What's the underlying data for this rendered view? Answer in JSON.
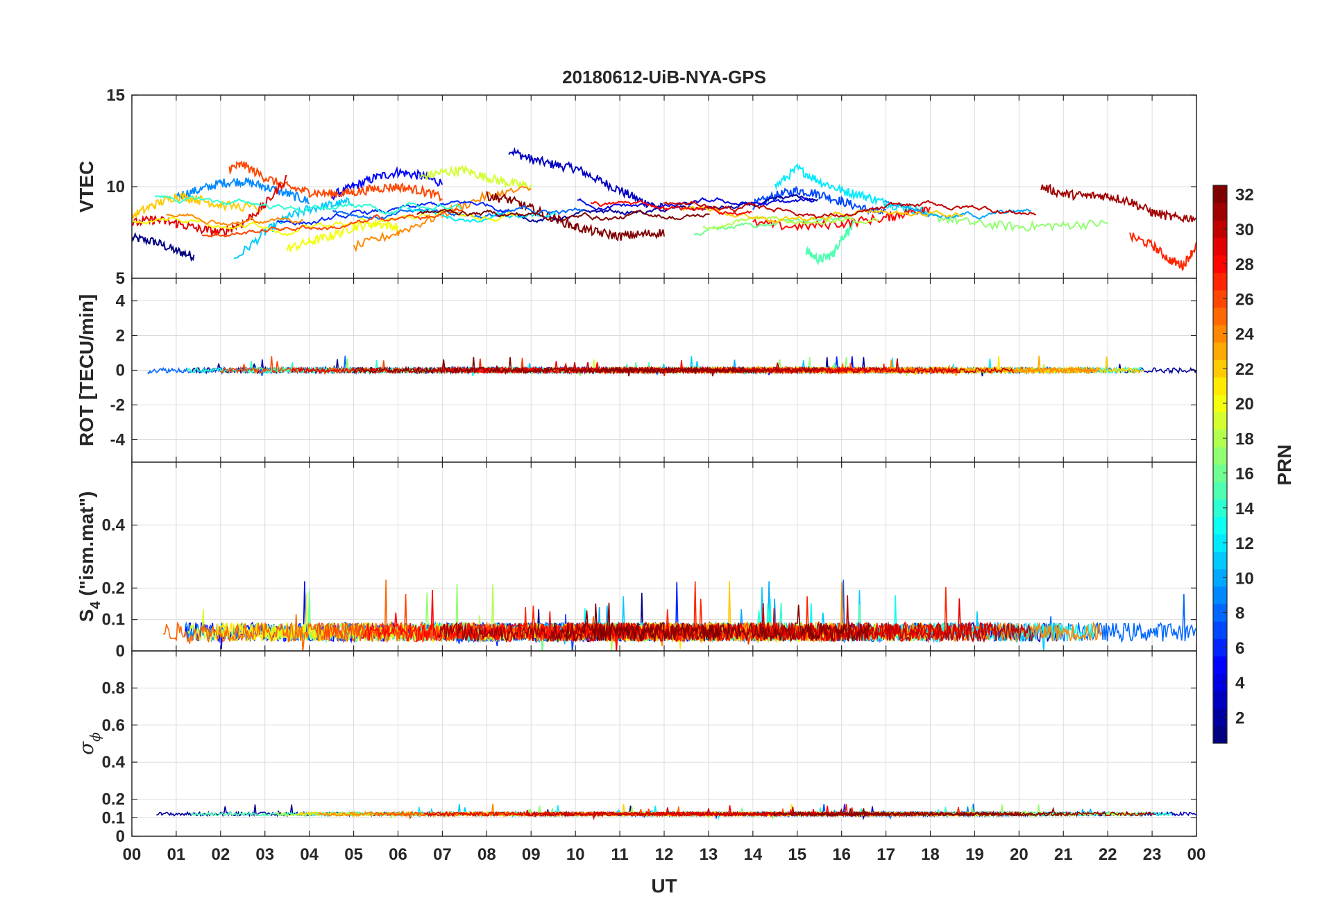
{
  "chart_data": {
    "type": "line",
    "title": "20180612-UiB-NYA-GPS",
    "xlabel": "UT",
    "x_ticks": [
      "00",
      "01",
      "02",
      "03",
      "04",
      "05",
      "06",
      "07",
      "08",
      "09",
      "10",
      "11",
      "12",
      "13",
      "14",
      "15",
      "16",
      "17",
      "18",
      "19",
      "20",
      "21",
      "22",
      "23",
      "00"
    ],
    "xlim": [
      0,
      24
    ],
    "grid": true,
    "colorbar": {
      "label": "PRN",
      "range": [
        1,
        32
      ],
      "ticks": [
        "2",
        "4",
        "6",
        "8",
        "10",
        "12",
        "14",
        "16",
        "18",
        "20",
        "22",
        "24",
        "26",
        "28",
        "30",
        "32"
      ],
      "colormap": "jet",
      "colors": [
        "#00008f",
        "#0000ff",
        "#00ffff",
        "#ffff00",
        "#ff0000",
        "#800000"
      ]
    },
    "panels": [
      {
        "ylabel": "VTEC",
        "ylim": [
          5,
          15
        ],
        "y_ticks": [
          "5",
          "10",
          "15"
        ],
        "y_tick_values": [
          5,
          10,
          15
        ],
        "baseline": 8.5,
        "spread": 1.2
      },
      {
        "ylabel": "ROT [TECU/min]",
        "ylim": [
          -5.3,
          5.3
        ],
        "y_ticks": [
          "-4",
          "-2",
          "0",
          "2",
          "4"
        ],
        "y_tick_values": [
          -4,
          -2,
          0,
          2,
          4
        ],
        "baseline": 0.0,
        "spread": 0.15
      },
      {
        "ylabel": "S",
        "ylabel_sub": "4",
        "ylabel_suffix": " (\"ism.mat\")",
        "ylim": [
          0,
          0.6
        ],
        "y_ticks": [
          "0",
          "0.1",
          "0.2",
          "0.4"
        ],
        "y_tick_values": [
          0,
          0.1,
          0.2,
          0.4
        ],
        "baseline": 0.06,
        "spread": 0.03
      },
      {
        "ylabel": "σ",
        "ylabel_sub": "ϕ",
        "ylim": [
          0,
          1
        ],
        "y_ticks": [
          "0",
          "0.1",
          "0.2",
          "0.4",
          "0.6",
          "0.8"
        ],
        "y_tick_values": [
          0,
          0.1,
          0.2,
          0.4,
          0.6,
          0.8
        ],
        "baseline": 0.12,
        "spread": 0.01
      }
    ],
    "series": [
      {
        "name": "1",
        "panel": 0,
        "x": [
          0.0,
          0.5,
          1.0,
          1.4
        ],
        "y": [
          7.2,
          7.0,
          6.5,
          6.2
        ]
      },
      {
        "name": "3",
        "panel": 0,
        "x": [
          8.5,
          9.0,
          9.5,
          10.0,
          10.5,
          11.0,
          11.5,
          12.0
        ],
        "y": [
          12.0,
          11.5,
          11.2,
          11.0,
          10.4,
          9.8,
          9.2,
          8.8
        ]
      },
      {
        "name": "5",
        "panel": 0,
        "x": [
          4.5,
          5.0,
          5.5,
          6.0,
          6.5,
          7.0
        ],
        "y": [
          9.5,
          10.0,
          10.5,
          10.8,
          10.6,
          10.2
        ]
      },
      {
        "name": "7",
        "panel": 0,
        "x": [
          14.0,
          14.5,
          15.0,
          15.5,
          16.0,
          16.5,
          17.0
        ],
        "y": [
          9.0,
          9.5,
          9.8,
          9.6,
          9.2,
          8.8,
          8.5
        ]
      },
      {
        "name": "9",
        "panel": 0,
        "x": [
          1.0,
          1.5,
          2.0,
          2.5,
          3.0,
          3.5,
          4.0
        ],
        "y": [
          9.5,
          9.8,
          10.2,
          10.3,
          10.0,
          9.6,
          9.2
        ]
      },
      {
        "name": "11",
        "panel": 0,
        "x": [
          2.3,
          3.0,
          3.5,
          4.0,
          4.5,
          5.0
        ],
        "y": [
          6.0,
          7.5,
          8.3,
          8.8,
          9.0,
          9.2
        ]
      },
      {
        "name": "12",
        "panel": 0,
        "x": [
          14.5,
          15.0,
          15.5,
          16.0,
          16.5,
          17.0,
          17.5,
          18.0
        ],
        "y": [
          10.0,
          11.0,
          10.3,
          9.8,
          9.5,
          9.1,
          8.8,
          8.6
        ]
      },
      {
        "name": "15",
        "panel": 0,
        "x": [
          15.2,
          15.5,
          15.8,
          16.0,
          16.3
        ],
        "y": [
          6.5,
          6.0,
          6.3,
          7.2,
          8.0
        ]
      },
      {
        "name": "17",
        "panel": 0,
        "x": [
          18.0,
          19.0,
          20.0,
          21.0,
          22.0
        ],
        "y": [
          8.4,
          8.0,
          7.8,
          7.9,
          8.0
        ]
      },
      {
        "name": "19",
        "panel": 0,
        "x": [
          6.5,
          7.0,
          7.5,
          8.0,
          8.5,
          9.0
        ],
        "y": [
          10.5,
          10.8,
          10.9,
          10.5,
          10.2,
          10.0
        ]
      },
      {
        "name": "20",
        "panel": 0,
        "x": [
          3.5,
          4.0,
          4.5,
          5.0,
          5.5,
          6.0
        ],
        "y": [
          6.6,
          7.0,
          7.3,
          7.8,
          8.0,
          7.8
        ]
      },
      {
        "name": "22",
        "panel": 0,
        "x": [
          0.0,
          0.5,
          1.0,
          1.5,
          2.0,
          3.0
        ],
        "y": [
          8.4,
          9.0,
          9.5,
          9.3,
          9.0,
          8.8
        ]
      },
      {
        "name": "24",
        "panel": 0,
        "x": [
          5.0,
          6.0,
          7.0,
          8.0,
          9.0
        ],
        "y": [
          6.7,
          7.5,
          8.5,
          9.5,
          9.9
        ]
      },
      {
        "name": "26",
        "panel": 0,
        "x": [
          2.2,
          2.5,
          3.0,
          3.5,
          4.0,
          4.5,
          5.0,
          5.5,
          6.0,
          6.5,
          7.0
        ],
        "y": [
          11.0,
          11.2,
          10.5,
          10.0,
          9.7,
          9.6,
          9.7,
          9.9,
          10.0,
          9.8,
          9.4
        ]
      },
      {
        "name": "27",
        "panel": 0,
        "x": [
          22.5,
          23.0,
          23.4,
          23.7,
          24.0
        ],
        "y": [
          7.3,
          6.8,
          6.0,
          5.7,
          6.8
        ]
      },
      {
        "name": "28",
        "panel": 0,
        "x": [
          14.0,
          15.0,
          16.0,
          17.0,
          17.5,
          18.0
        ],
        "y": [
          8.0,
          7.8,
          8.0,
          8.3,
          8.6,
          8.9
        ]
      },
      {
        "name": "29",
        "panel": 0,
        "x": [
          0.0,
          0.5,
          1.0,
          1.5,
          2.0,
          2.5,
          3.0,
          3.5
        ],
        "y": [
          8.0,
          8.2,
          8.0,
          7.7,
          7.5,
          8.0,
          9.0,
          10.5
        ]
      },
      {
        "name": "31",
        "panel": 0,
        "x": [
          20.5,
          21.0,
          21.5,
          22.0,
          22.5,
          23.0,
          23.5,
          24.0
        ],
        "y": [
          10.0,
          9.6,
          9.5,
          9.5,
          9.2,
          8.6,
          8.3,
          8.3
        ]
      },
      {
        "name": "32",
        "panel": 0,
        "x": [
          8.0,
          8.5,
          9.0,
          9.5,
          10.0,
          10.5,
          11.0,
          11.5,
          12.0
        ],
        "y": [
          9.5,
          9.3,
          8.8,
          8.3,
          7.8,
          7.5,
          7.3,
          7.4,
          7.5
        ]
      }
    ]
  }
}
